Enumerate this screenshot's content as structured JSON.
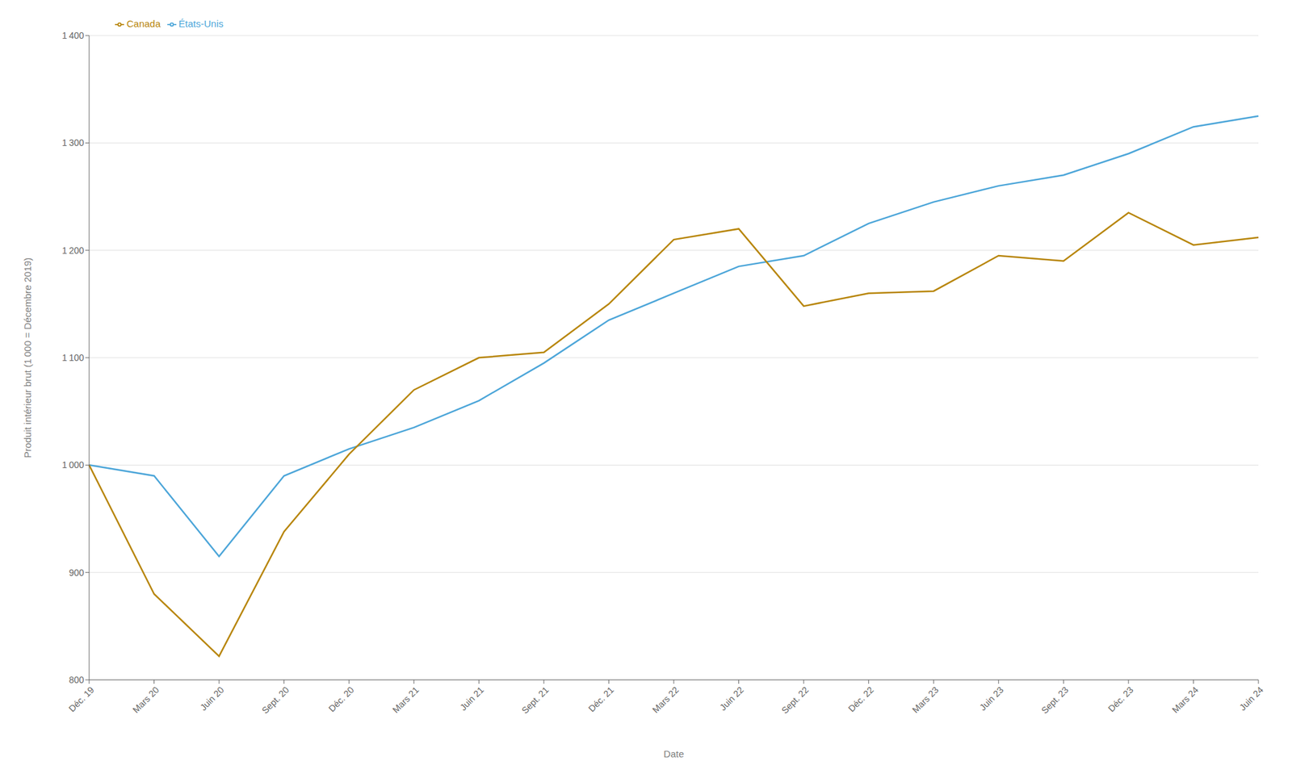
{
  "chart_data": {
    "type": "line",
    "xlabel": "Date",
    "ylabel": "Produit intérieur brut (1 000 = Décembre 2019)",
    "categories": [
      "Déc. 19",
      "Mars 20",
      "Juin 20",
      "Sept. 20",
      "Déc. 20",
      "Mars 21",
      "Juin 21",
      "Sept. 21",
      "Déc. 21",
      "Mars 22",
      "Juin 22",
      "Sept. 22",
      "Déc. 22",
      "Mars 23",
      "Juin 23",
      "Sept. 23",
      "Déc. 23",
      "Mars 24",
      "Juin 24"
    ],
    "series": [
      {
        "name": "États-Unis",
        "color": "#4DA6D9",
        "values": [
          1000,
          990,
          915,
          990,
          1015,
          1035,
          1060,
          1095,
          1135,
          1160,
          1185,
          1195,
          1225,
          1245,
          1260,
          1270,
          1290,
          1315,
          1325
        ]
      },
      {
        "name": "Canada",
        "color": "#B8860B",
        "values": [
          1000,
          880,
          822,
          938,
          1010,
          1070,
          1100,
          1105,
          1150,
          1210,
          1220,
          1148,
          1160,
          1162,
          1195,
          1190,
          1235,
          1205,
          1212
        ]
      }
    ],
    "ylim": [
      800,
      1400
    ],
    "yticks": [
      800,
      900,
      {
        "value": 1000,
        "label": "1 000"
      },
      {
        "value": 1100,
        "label": "1 100"
      },
      {
        "value": 1200,
        "label": "1 200"
      },
      {
        "value": 1300,
        "label": "1 300"
      },
      {
        "value": 1400,
        "label": "1 400"
      }
    ],
    "grid": "y",
    "legend": "upper left"
  }
}
